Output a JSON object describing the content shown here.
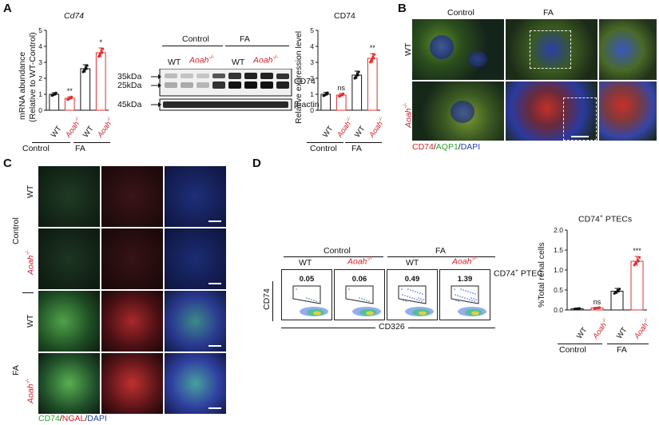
{
  "panel_labels": {
    "a": "A",
    "b": "B",
    "c": "C",
    "d": "D"
  },
  "groups": {
    "control": "Control",
    "fa": "FA",
    "wt": "WT",
    "aoah": "Aoah",
    "ko_sup": "-/-"
  },
  "panelA": {
    "mrna": {
      "title": "Cd74",
      "ylabel_line1": "mRNA abundance",
      "ylabel_line2": "(Relative to WT-Control)",
      "y_ticks": [
        "0",
        "1",
        "2",
        "3",
        "4",
        "5"
      ],
      "sig": [
        "",
        "**",
        "",
        "*"
      ]
    },
    "blot": {
      "mw_35": "35kDa",
      "mw_25": "25kDa",
      "mw_45": "45kDa",
      "band_cd74": "CD74",
      "band_actin": "β-actin"
    },
    "protein": {
      "title": "CD74",
      "ylabel": "Relative expression level",
      "y_ticks": [
        "0",
        "1",
        "2",
        "3",
        "4",
        "5"
      ],
      "sig": [
        "",
        "ns",
        "",
        "**"
      ]
    }
  },
  "panelB": {
    "stain_cd74": "CD74",
    "stain_aqp1": "AQP1",
    "stain_dapi": "DAPI",
    "slash": "/"
  },
  "panelC": {
    "stain_cd74": "CD74",
    "stain_ngal": "NGAL",
    "stain_dapi": "DAPI",
    "slash": "/"
  },
  "panelD": {
    "flow": {
      "gate_values": [
        "0.05",
        "0.06",
        "0.49",
        "1.39"
      ],
      "y_axis": "CD74",
      "x_axis": "CD326",
      "gate_label": "CD74",
      "gate_label_sup": "+",
      "gate_label_tail": " PTEC"
    },
    "bar": {
      "title_a": "CD74",
      "title_sup": "+",
      "title_b": " PTECs",
      "ylabel": "%Total renal cells",
      "y_ticks": [
        "0.0",
        "0.5",
        "1.0",
        "1.5",
        "2.0"
      ],
      "sig": [
        "",
        "ns",
        "",
        "***"
      ]
    }
  },
  "chart_data": [
    {
      "type": "bar",
      "title": "Cd74",
      "ylabel": "mRNA abundance (Relative to WT-Control)",
      "categories": [
        "WT Control",
        "Aoah-/- Control",
        "WT FA",
        "Aoah-/- FA"
      ],
      "values": [
        1.0,
        0.75,
        2.6,
        3.6
      ],
      "errors": [
        0.1,
        0.1,
        0.25,
        0.3
      ],
      "ylim": [
        0,
        5
      ],
      "colors": [
        "#111111",
        "#e03030",
        "#111111",
        "#e03030"
      ]
    },
    {
      "type": "bar",
      "title": "CD74",
      "ylabel": "Relative expression level",
      "categories": [
        "WT Control",
        "Aoah-/- Control",
        "WT FA",
        "Aoah-/- FA"
      ],
      "values": [
        1.0,
        0.95,
        2.2,
        3.25
      ],
      "errors": [
        0.12,
        0.1,
        0.25,
        0.3
      ],
      "ylim": [
        0,
        5
      ],
      "colors": [
        "#111111",
        "#e03030",
        "#111111",
        "#e03030"
      ]
    },
    {
      "type": "bar",
      "title": "CD74+ PTECs",
      "ylabel": "%Total renal cells",
      "categories": [
        "WT Control",
        "Aoah-/- Control",
        "WT FA",
        "Aoah-/- FA"
      ],
      "values": [
        0.03,
        0.05,
        0.47,
        1.22
      ],
      "errors": [
        0.01,
        0.01,
        0.07,
        0.12
      ],
      "ylim": [
        0,
        2.0
      ],
      "colors": [
        "#111111",
        "#e03030",
        "#111111",
        "#e03030"
      ]
    }
  ]
}
